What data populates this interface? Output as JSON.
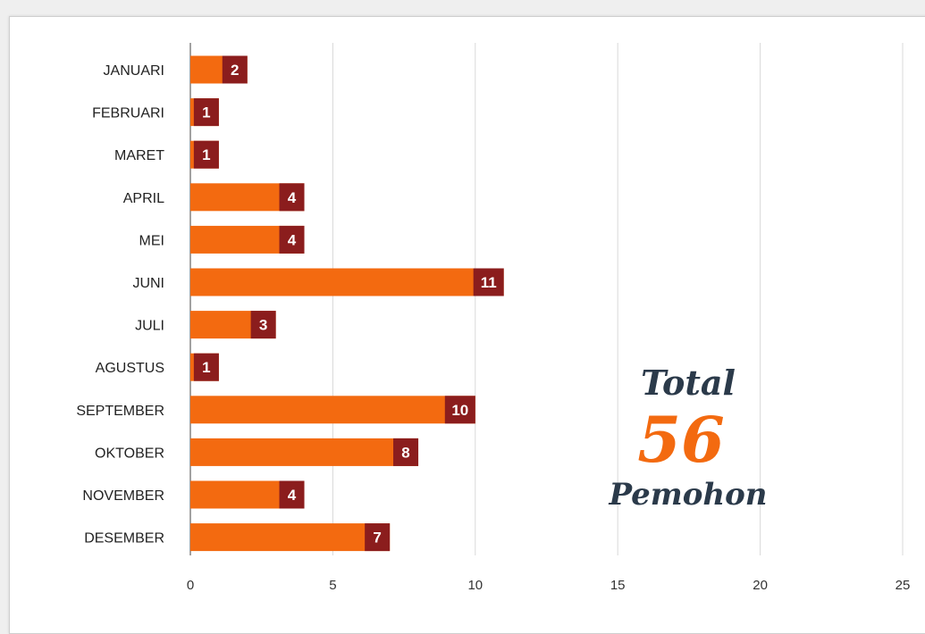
{
  "chart_data": {
    "type": "bar",
    "orientation": "horizontal",
    "categories": [
      "JANUARI",
      "FEBRUARI",
      "MARET",
      "APRIL",
      "MEI",
      "JUNI",
      "JULI",
      "AGUSTUS",
      "SEPTEMBER",
      "OKTOBER",
      "NOVEMBER",
      "DESEMBER"
    ],
    "values": [
      2,
      1,
      1,
      4,
      4,
      11,
      3,
      1,
      10,
      8,
      4,
      7
    ],
    "xlim": [
      0,
      25
    ],
    "x_ticks": [
      "0",
      "5",
      "10",
      "15",
      "20",
      "25"
    ],
    "grid": true,
    "title": "",
    "xlabel": "",
    "ylabel": "",
    "colors": {
      "bar": "#f36a10",
      "value_badge": "#8b1d1d",
      "grid": "#d8d8d8"
    }
  },
  "annotation": {
    "line1": "Total",
    "line2": "56",
    "line3": "Pemohon",
    "colors": {
      "text": "#2b3a4a",
      "number": "#f36a10"
    }
  }
}
